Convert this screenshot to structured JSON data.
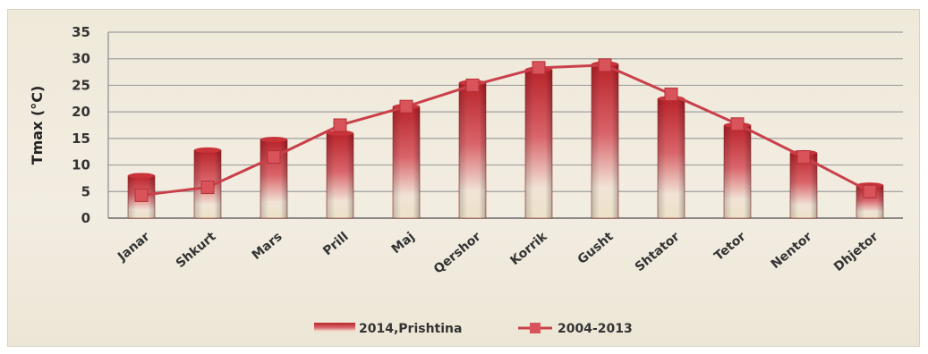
{
  "chart_data": {
    "type": "bar",
    "categories": [
      "Janar",
      "Shkurt",
      "Mars",
      "Prill",
      "Maj",
      "Qershor",
      "Korrik",
      "Gusht",
      "Shtator",
      "Tetor",
      "Nentor",
      "Dhjetor"
    ],
    "series": [
      {
        "name": "2014,Prishtina",
        "type": "bar",
        "values": [
          8,
          12.8,
          14.8,
          16,
          21,
          25.5,
          28,
          29,
          22.5,
          17.5,
          12.3,
          6.2
        ]
      },
      {
        "name": "2004-2013",
        "type": "line",
        "values": [
          4.3,
          5.8,
          11.5,
          17.5,
          21,
          25,
          28.3,
          28.8,
          23.3,
          17.7,
          11.5,
          5
        ]
      }
    ],
    "title": "",
    "xlabel": "",
    "ylabel": "Tmax (°C)",
    "ylim": [
      0,
      35
    ],
    "yticks": [
      0,
      5,
      10,
      15,
      20,
      25,
      30,
      35
    ],
    "grid": true,
    "legend_position": "bottom"
  },
  "colors": {
    "bar_top": "#c02a2a",
    "bar_bottom": "#f3ead6",
    "line": "#c9404a",
    "marker": "#d9545a",
    "grid": "#9f9f9f"
  }
}
